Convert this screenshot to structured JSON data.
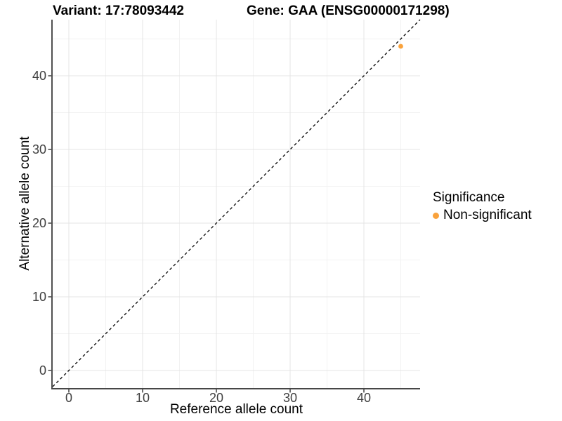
{
  "header": {
    "title_left": "Variant: 17:78093442",
    "title_right": "Gene: GAA (ENSG00000171298)"
  },
  "chart_data": {
    "type": "scatter",
    "title": "Variant: 17:78093442    Gene: GAA (ENSG00000171298)",
    "xlabel": "Reference allele count",
    "ylabel": "Alternative allele count",
    "xlim": [
      -2.2,
      47.6
    ],
    "ylim": [
      -2.4,
      47.6
    ],
    "x_major_ticks": [
      0,
      10,
      20,
      30,
      40
    ],
    "x_minor_ticks": [
      5,
      15,
      25,
      35,
      45
    ],
    "y_major_ticks": [
      0,
      10,
      20,
      30,
      40
    ],
    "y_minor_ticks": [
      5,
      15,
      25,
      35,
      45
    ],
    "grid": true,
    "legend_position": "right",
    "reference_line": {
      "slope": 1,
      "intercept": 0,
      "style": "dashed",
      "color": "#000000"
    },
    "series": [
      {
        "name": "Non-significant",
        "color": "#F9A23C",
        "points": [
          {
            "x": 45,
            "y": 44
          }
        ]
      }
    ],
    "legend": {
      "title": "Significance",
      "entries": [
        {
          "label": "Non-significant",
          "color": "#F9A23C"
        }
      ]
    },
    "colors": {
      "panel_background": "#ffffff",
      "grid_major": "#e4e4e4",
      "grid_minor": "#f2f2f2",
      "axis_line": "#474747",
      "tick_mark": "#333333",
      "tick_label": "#404040",
      "text": "#000000"
    }
  }
}
